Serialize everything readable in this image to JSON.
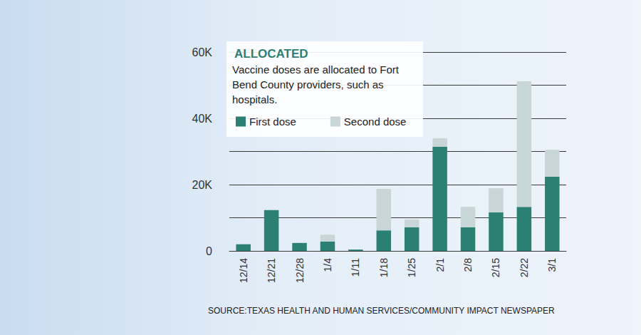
{
  "chart_data": {
    "type": "bar",
    "title": "ALLOCATED",
    "subtitle": "Vaccine doses are allocated to Fort Bend County providers, such as hospitals.",
    "source": "SOURCE:TEXAS HEALTH AND HUMAN SERVICES/COMMUNITY IMPACT NEWSPAPER",
    "categories": [
      "12/14",
      "12/21",
      "12/28",
      "1/4",
      "1/11",
      "1/18",
      "1/25",
      "2/1",
      "2/8",
      "2/15",
      "2/22",
      "3/1"
    ],
    "series": [
      {
        "name": "First dose",
        "color": "#2b8073",
        "values": [
          2000,
          12300,
          2400,
          2800,
          400,
          6200,
          7100,
          31400,
          7100,
          11600,
          13300,
          22400
        ]
      },
      {
        "name": "Second dose",
        "color": "#c9d6d8",
        "values": [
          0,
          0,
          0,
          2100,
          0,
          12500,
          2400,
          2600,
          6200,
          7300,
          37900,
          8100
        ]
      }
    ],
    "ylim": [
      0,
      60000
    ],
    "yticks": [
      0,
      {
        "value": 20000,
        "label": "20K"
      },
      {
        "value": 40000,
        "label": "40K"
      },
      {
        "value": 60000,
        "label": "60K"
      }
    ],
    "stacked": true,
    "grid": true,
    "legend": "top-left"
  }
}
